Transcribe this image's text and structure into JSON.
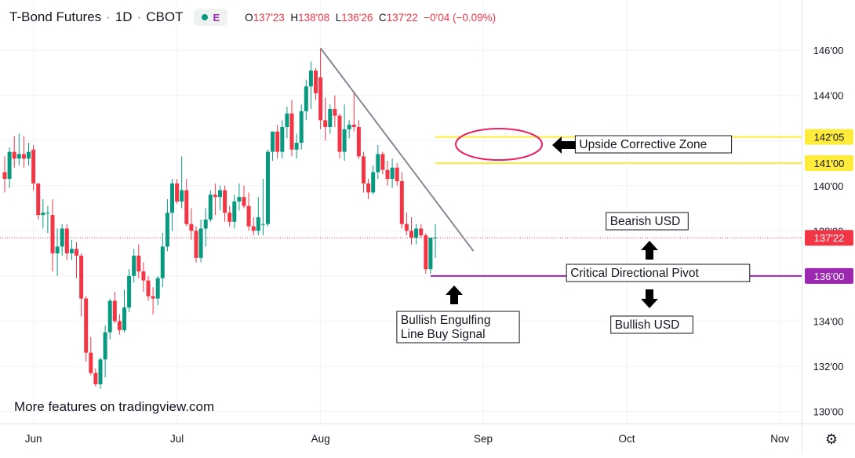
{
  "header": {
    "symbol": "T-Bond Futures",
    "interval": "1D",
    "exchange": "CBOT",
    "badge": "E",
    "ohlc": [
      {
        "k": "O",
        "v": "137'23"
      },
      {
        "k": "H",
        "v": "138'08"
      },
      {
        "k": "L",
        "v": "136'26"
      },
      {
        "k": "C",
        "v": "137'22"
      },
      {
        "k": "",
        "v": "−0'04 (−0.09%)"
      }
    ]
  },
  "watermark": "More features on tradingview.com",
  "colors": {
    "up": "#089981",
    "down": "#f23645",
    "grid": "#f0f3fa",
    "text": "#131722",
    "trendline": "#868993",
    "zone": "#ffeb3b",
    "pivot": "#9c27b0",
    "ellipse": "#e91e63",
    "price_line": "#f23645"
  },
  "chart_data": {
    "type": "candlestick",
    "title": "T-Bond Futures · 1D · CBOT",
    "price_unit": "32nds (e.g. 137'22 = 137 + 22/32)",
    "ylim": [
      129.6,
      146.7
    ],
    "y_ticks": [
      {
        "label": "146'00",
        "value": 146
      },
      {
        "label": "144'00",
        "value": 144
      },
      {
        "label": "142'00",
        "value": 142
      },
      {
        "label": "140'00",
        "value": 140
      },
      {
        "label": "138'00",
        "value": 138
      },
      {
        "label": "136'00",
        "value": 136
      },
      {
        "label": "134'00",
        "value": 134
      },
      {
        "label": "132'00",
        "value": 132
      },
      {
        "label": "130'00",
        "value": 130
      }
    ],
    "x_labels": [
      "Jun",
      "Jul",
      "Aug",
      "Sep",
      "Oct",
      "Nov"
    ],
    "month_start_index": {
      "Jun": 6,
      "Jul": 36,
      "Aug": 66,
      "Sep": 100,
      "Oct": 130,
      "Nov": 162
    },
    "candles": [
      {
        "o": 140.6,
        "h": 141.3,
        "l": 139.7,
        "c": 140.3
      },
      {
        "o": 140.3,
        "h": 141.7,
        "l": 139.9,
        "c": 141.5
      },
      {
        "o": 141.5,
        "h": 142.2,
        "l": 140.8,
        "c": 141.2
      },
      {
        "o": 141.2,
        "h": 142.3,
        "l": 140.9,
        "c": 141.4
      },
      {
        "o": 141.4,
        "h": 142.2,
        "l": 140.8,
        "c": 141.2
      },
      {
        "o": 141.2,
        "h": 141.9,
        "l": 140.9,
        "c": 141.5
      },
      {
        "o": 141.6,
        "h": 141.8,
        "l": 139.8,
        "c": 140.1
      },
      {
        "o": 140.1,
        "h": 140.1,
        "l": 138.5,
        "c": 138.7
      },
      {
        "o": 138.7,
        "h": 139.4,
        "l": 138.1,
        "c": 138.8
      },
      {
        "o": 138.8,
        "h": 139.1,
        "l": 137.9,
        "c": 138.8
      },
      {
        "o": 138.7,
        "h": 139.4,
        "l": 136.2,
        "c": 137.0
      },
      {
        "o": 137.0,
        "h": 138.1,
        "l": 136.0,
        "c": 137.3
      },
      {
        "o": 137.3,
        "h": 138.3,
        "l": 136.9,
        "c": 138.1
      },
      {
        "o": 138.1,
        "h": 138.3,
        "l": 136.7,
        "c": 137.0
      },
      {
        "o": 137.0,
        "h": 137.6,
        "l": 136.7,
        "c": 137.2
      },
      {
        "o": 137.2,
        "h": 137.5,
        "l": 135.9,
        "c": 136.9
      },
      {
        "o": 136.9,
        "h": 137.0,
        "l": 134.2,
        "c": 135.0
      },
      {
        "o": 135.0,
        "h": 135.1,
        "l": 132.2,
        "c": 132.6
      },
      {
        "o": 132.6,
        "h": 133.3,
        "l": 131.6,
        "c": 131.7
      },
      {
        "o": 131.7,
        "h": 131.9,
        "l": 131.1,
        "c": 131.2
      },
      {
        "o": 131.2,
        "h": 132.4,
        "l": 131.0,
        "c": 132.3
      },
      {
        "o": 132.3,
        "h": 133.8,
        "l": 131.5,
        "c": 133.5
      },
      {
        "o": 133.5,
        "h": 135.0,
        "l": 133.2,
        "c": 134.9
      },
      {
        "o": 134.9,
        "h": 135.3,
        "l": 133.9,
        "c": 134.0
      },
      {
        "o": 134.0,
        "h": 134.3,
        "l": 133.4,
        "c": 133.6
      },
      {
        "o": 133.6,
        "h": 135.4,
        "l": 133.5,
        "c": 134.6
      },
      {
        "o": 134.6,
        "h": 136.3,
        "l": 134.4,
        "c": 136.0
      },
      {
        "o": 136.0,
        "h": 137.2,
        "l": 135.7,
        "c": 136.9
      },
      {
        "o": 136.9,
        "h": 137.4,
        "l": 135.9,
        "c": 136.2
      },
      {
        "o": 136.2,
        "h": 136.6,
        "l": 135.3,
        "c": 135.8
      },
      {
        "o": 135.8,
        "h": 136.0,
        "l": 134.9,
        "c": 135.1
      },
      {
        "o": 135.1,
        "h": 135.5,
        "l": 134.3,
        "c": 135.0
      },
      {
        "o": 135.0,
        "h": 136.0,
        "l": 134.7,
        "c": 135.9
      },
      {
        "o": 135.9,
        "h": 137.9,
        "l": 135.5,
        "c": 137.3
      },
      {
        "o": 137.3,
        "h": 139.4,
        "l": 137.1,
        "c": 138.8
      },
      {
        "o": 138.8,
        "h": 140.3,
        "l": 138.0,
        "c": 140.1
      },
      {
        "o": 140.1,
        "h": 140.3,
        "l": 139.2,
        "c": 139.3
      },
      {
        "o": 139.3,
        "h": 141.3,
        "l": 139.0,
        "c": 139.8
      },
      {
        "o": 139.8,
        "h": 140.3,
        "l": 138.2,
        "c": 138.3
      },
      {
        "o": 138.3,
        "h": 139.0,
        "l": 137.6,
        "c": 138.0
      },
      {
        "o": 138.0,
        "h": 138.2,
        "l": 136.6,
        "c": 136.8
      },
      {
        "o": 136.8,
        "h": 138.5,
        "l": 136.6,
        "c": 138.1
      },
      {
        "o": 138.1,
        "h": 139.0,
        "l": 137.3,
        "c": 138.5
      },
      {
        "o": 138.5,
        "h": 139.8,
        "l": 138.4,
        "c": 139.6
      },
      {
        "o": 139.6,
        "h": 140.1,
        "l": 138.7,
        "c": 139.5
      },
      {
        "o": 139.5,
        "h": 140.0,
        "l": 138.9,
        "c": 139.8
      },
      {
        "o": 139.8,
        "h": 140.0,
        "l": 138.4,
        "c": 138.8
      },
      {
        "o": 138.8,
        "h": 139.1,
        "l": 138.2,
        "c": 138.4
      },
      {
        "o": 138.4,
        "h": 139.6,
        "l": 138.1,
        "c": 139.3
      },
      {
        "o": 139.3,
        "h": 140.1,
        "l": 138.9,
        "c": 139.5
      },
      {
        "o": 139.5,
        "h": 140.0,
        "l": 139.0,
        "c": 139.1
      },
      {
        "o": 139.1,
        "h": 139.7,
        "l": 138.0,
        "c": 138.2
      },
      {
        "o": 138.2,
        "h": 138.6,
        "l": 137.8,
        "c": 138.0
      },
      {
        "o": 138.0,
        "h": 139.5,
        "l": 137.8,
        "c": 138.6
      },
      {
        "o": 138.3,
        "h": 140.3,
        "l": 137.8,
        "c": 138.3
      },
      {
        "o": 138.3,
        "h": 141.6,
        "l": 138.2,
        "c": 141.5
      },
      {
        "o": 141.5,
        "h": 142.4,
        "l": 141.1,
        "c": 142.4
      },
      {
        "o": 142.4,
        "h": 142.7,
        "l": 141.2,
        "c": 141.5
      },
      {
        "o": 141.5,
        "h": 142.9,
        "l": 141.2,
        "c": 142.6
      },
      {
        "o": 142.6,
        "h": 143.5,
        "l": 142.1,
        "c": 143.2
      },
      {
        "o": 143.2,
        "h": 143.8,
        "l": 141.3,
        "c": 141.6
      },
      {
        "o": 141.6,
        "h": 142.3,
        "l": 141.2,
        "c": 141.9
      },
      {
        "o": 141.9,
        "h": 143.6,
        "l": 141.6,
        "c": 143.3
      },
      {
        "o": 143.3,
        "h": 144.7,
        "l": 142.9,
        "c": 144.4
      },
      {
        "o": 144.4,
        "h": 145.5,
        "l": 143.4,
        "c": 145.1
      },
      {
        "o": 145.1,
        "h": 145.2,
        "l": 143.8,
        "c": 144.1
      },
      {
        "o": 144.8,
        "h": 146.1,
        "l": 142.5,
        "c": 142.9
      },
      {
        "o": 142.9,
        "h": 143.9,
        "l": 142.0,
        "c": 142.6
      },
      {
        "o": 142.6,
        "h": 143.6,
        "l": 142.3,
        "c": 143.4
      },
      {
        "o": 143.4,
        "h": 144.0,
        "l": 142.6,
        "c": 143.1
      },
      {
        "o": 143.1,
        "h": 143.2,
        "l": 141.2,
        "c": 141.5
      },
      {
        "o": 141.5,
        "h": 143.6,
        "l": 141.1,
        "c": 142.5
      },
      {
        "o": 142.5,
        "h": 142.9,
        "l": 142.1,
        "c": 142.7
      },
      {
        "o": 142.7,
        "h": 144.2,
        "l": 142.4,
        "c": 142.6
      },
      {
        "o": 142.6,
        "h": 142.9,
        "l": 141.2,
        "c": 141.3
      },
      {
        "o": 141.3,
        "h": 141.5,
        "l": 139.7,
        "c": 140.1
      },
      {
        "o": 140.1,
        "h": 140.3,
        "l": 139.4,
        "c": 139.7
      },
      {
        "o": 139.7,
        "h": 140.9,
        "l": 139.6,
        "c": 140.6
      },
      {
        "o": 140.6,
        "h": 141.8,
        "l": 140.3,
        "c": 141.4
      },
      {
        "o": 141.4,
        "h": 141.5,
        "l": 140.5,
        "c": 140.7
      },
      {
        "o": 140.7,
        "h": 141.1,
        "l": 140.0,
        "c": 140.3
      },
      {
        "o": 140.3,
        "h": 141.2,
        "l": 139.9,
        "c": 140.8
      },
      {
        "o": 140.8,
        "h": 141.0,
        "l": 140.0,
        "c": 140.2
      },
      {
        "o": 140.2,
        "h": 140.6,
        "l": 138.1,
        "c": 138.3
      },
      {
        "o": 138.3,
        "h": 138.8,
        "l": 137.8,
        "c": 138.0
      },
      {
        "o": 138.0,
        "h": 138.6,
        "l": 137.4,
        "c": 137.7
      },
      {
        "o": 137.7,
        "h": 138.3,
        "l": 137.4,
        "c": 138.1
      },
      {
        "o": 138.1,
        "h": 138.3,
        "l": 137.7,
        "c": 137.8
      },
      {
        "o": 137.8,
        "h": 137.9,
        "l": 136.1,
        "c": 136.3
      },
      {
        "o": 136.3,
        "h": 137.6,
        "l": 136.1,
        "c": 137.7
      },
      {
        "o": 137.7,
        "h": 138.3,
        "l": 136.8,
        "c": 137.7
      }
    ]
  },
  "annotations": {
    "trendline": {
      "from": {
        "i": 66,
        "p": 146.1
      },
      "to": {
        "i": 96,
        "p": 137.1
      }
    },
    "upside_zone": {
      "upper": 142.16,
      "lower": 141.0,
      "start_i": 90,
      "label": "Upside Corrective Zone",
      "upper_tag": "142'05",
      "lower_tag": "141'00"
    },
    "pivot": {
      "price": 136.0,
      "start_i": 89,
      "label": "Critical Directional Pivot",
      "tag": "136'00"
    },
    "last_price": {
      "price": 137.69,
      "tag": "137'22"
    },
    "bearish_label": "Bearish USD",
    "bullish_label": "Bullish USD",
    "signal_label_1": "Bullish Engulfing",
    "signal_label_2": "Line Buy Signal"
  }
}
